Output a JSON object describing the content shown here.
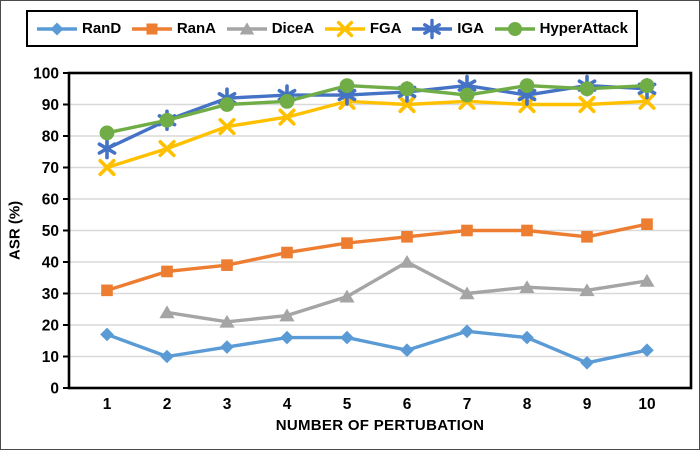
{
  "chart_data": {
    "type": "line",
    "title": "",
    "xlabel": "NUMBER OF PERTUBATION",
    "ylabel": "ASR (%)",
    "x_categories": [
      "1",
      "2",
      "3",
      "4",
      "5",
      "6",
      "7",
      "8",
      "9",
      "10"
    ],
    "ylim": [
      0,
      100
    ],
    "ytick_step": 10,
    "grid": "horizontal-only",
    "grid_color": "#d9d9d9",
    "axis_color": "#000000",
    "legend_position": "top",
    "series": [
      {
        "name": "RanD",
        "color": "#5B9BD5",
        "marker": "diamond",
        "values": [
          17,
          10,
          13,
          16,
          16,
          12,
          18,
          16,
          8,
          12
        ]
      },
      {
        "name": "RanA",
        "color": "#ED7D31",
        "marker": "square",
        "values": [
          31,
          37,
          39,
          43,
          46,
          48,
          50,
          50,
          48,
          52
        ]
      },
      {
        "name": "DiceA",
        "color": "#A5A5A5",
        "marker": "triangle",
        "values": [
          null,
          24,
          21,
          23,
          29,
          40,
          30,
          32,
          31,
          34
        ]
      },
      {
        "name": "FGA",
        "color": "#FFC000",
        "marker": "x",
        "values": [
          70,
          76,
          83,
          86,
          91,
          90,
          91,
          90,
          90,
          91
        ]
      },
      {
        "name": "IGA",
        "color": "#4472C4",
        "marker": "asterisk",
        "values": [
          76,
          85,
          92,
          93,
          93,
          94,
          96,
          93,
          96,
          95
        ]
      },
      {
        "name": "HyperAttack",
        "color": "#70AD47",
        "marker": "circle",
        "values": [
          81,
          85,
          90,
          91,
          96,
          95,
          93,
          96,
          95,
          96
        ]
      }
    ]
  }
}
